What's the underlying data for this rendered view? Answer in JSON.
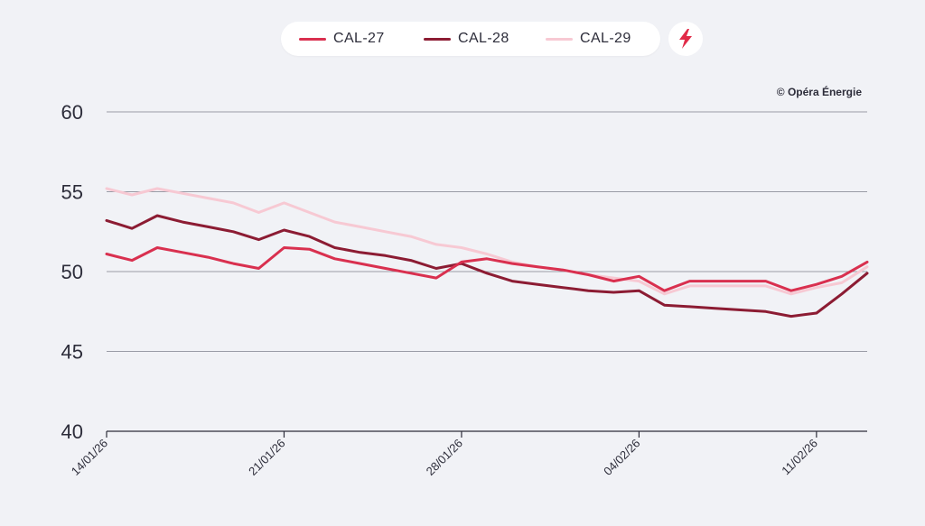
{
  "legend": {
    "items": [
      {
        "label": "CAL-27",
        "color": "#d9304f"
      },
      {
        "label": "CAL-28",
        "color": "#8c1c33"
      },
      {
        "label": "CAL-29",
        "color": "#f7c9d3"
      }
    ]
  },
  "credit": "© Opéra Énergie",
  "icons": {
    "bolt": "lightning-bolt-icon"
  },
  "chart_data": {
    "type": "line",
    "title": "",
    "xlabel": "",
    "ylabel": "",
    "ylim": [
      40,
      60
    ],
    "yticks": [
      40,
      45,
      50,
      55,
      60
    ],
    "xlim": [
      0,
      30
    ],
    "xticks": [
      {
        "x": 0,
        "label": "14/01/26"
      },
      {
        "x": 7,
        "label": "21/01/26"
      },
      {
        "x": 14,
        "label": "28/01/26"
      },
      {
        "x": 21,
        "label": "04/02/26"
      },
      {
        "x": 28,
        "label": "11/02/26"
      }
    ],
    "grid": true,
    "legend_position": "top-center",
    "series": [
      {
        "name": "CAL-29",
        "color": "#f7c9d3",
        "points": [
          [
            0,
            55.2
          ],
          [
            1,
            54.8
          ],
          [
            2,
            55.2
          ],
          [
            3,
            54.9
          ],
          [
            4,
            54.6
          ],
          [
            5,
            54.3
          ],
          [
            6,
            53.7
          ],
          [
            7,
            54.3
          ],
          [
            8,
            53.7
          ],
          [
            9,
            53.1
          ],
          [
            10,
            52.8
          ],
          [
            11,
            52.5
          ],
          [
            12,
            52.2
          ],
          [
            13,
            51.7
          ],
          [
            14,
            51.5
          ],
          [
            15,
            51.1
          ],
          [
            16,
            50.6
          ],
          [
            17,
            50.3
          ],
          [
            18,
            50.1
          ],
          [
            19,
            49.8
          ],
          [
            20,
            49.6
          ],
          [
            21,
            49.4
          ],
          [
            22,
            48.6
          ],
          [
            23,
            49.1
          ],
          [
            24,
            49.1
          ],
          [
            25,
            49.1
          ],
          [
            26,
            49.1
          ],
          [
            27,
            48.6
          ],
          [
            28,
            49.0
          ],
          [
            29,
            49.3
          ],
          [
            30,
            50.3
          ]
        ]
      },
      {
        "name": "CAL-28",
        "color": "#8c1c33",
        "points": [
          [
            0,
            53.2
          ],
          [
            1,
            52.7
          ],
          [
            2,
            53.5
          ],
          [
            3,
            53.1
          ],
          [
            4,
            52.8
          ],
          [
            5,
            52.5
          ],
          [
            6,
            52.0
          ],
          [
            7,
            52.6
          ],
          [
            8,
            52.2
          ],
          [
            9,
            51.5
          ],
          [
            10,
            51.2
          ],
          [
            11,
            51.0
          ],
          [
            12,
            50.7
          ],
          [
            13,
            50.2
          ],
          [
            14,
            50.5
          ],
          [
            15,
            49.9
          ],
          [
            16,
            49.4
          ],
          [
            17,
            49.2
          ],
          [
            18,
            49.0
          ],
          [
            19,
            48.8
          ],
          [
            20,
            48.7
          ],
          [
            21,
            48.8
          ],
          [
            22,
            47.9
          ],
          [
            23,
            47.8
          ],
          [
            24,
            47.7
          ],
          [
            25,
            47.6
          ],
          [
            26,
            47.5
          ],
          [
            27,
            47.2
          ],
          [
            28,
            47.4
          ],
          [
            29,
            48.6
          ],
          [
            30,
            49.9
          ]
        ]
      },
      {
        "name": "CAL-27",
        "color": "#d9304f",
        "points": [
          [
            0,
            51.1
          ],
          [
            1,
            50.7
          ],
          [
            2,
            51.5
          ],
          [
            3,
            51.2
          ],
          [
            4,
            50.9
          ],
          [
            5,
            50.5
          ],
          [
            6,
            50.2
          ],
          [
            7,
            51.5
          ],
          [
            8,
            51.4
          ],
          [
            9,
            50.8
          ],
          [
            10,
            50.5
          ],
          [
            11,
            50.2
          ],
          [
            12,
            49.9
          ],
          [
            13,
            49.6
          ],
          [
            14,
            50.6
          ],
          [
            15,
            50.8
          ],
          [
            16,
            50.5
          ],
          [
            17,
            50.3
          ],
          [
            18,
            50.1
          ],
          [
            19,
            49.8
          ],
          [
            20,
            49.4
          ],
          [
            21,
            49.7
          ],
          [
            22,
            48.8
          ],
          [
            23,
            49.4
          ],
          [
            24,
            49.4
          ],
          [
            25,
            49.4
          ],
          [
            26,
            49.4
          ],
          [
            27,
            48.8
          ],
          [
            28,
            49.2
          ],
          [
            29,
            49.7
          ],
          [
            30,
            50.6
          ]
        ]
      }
    ]
  }
}
